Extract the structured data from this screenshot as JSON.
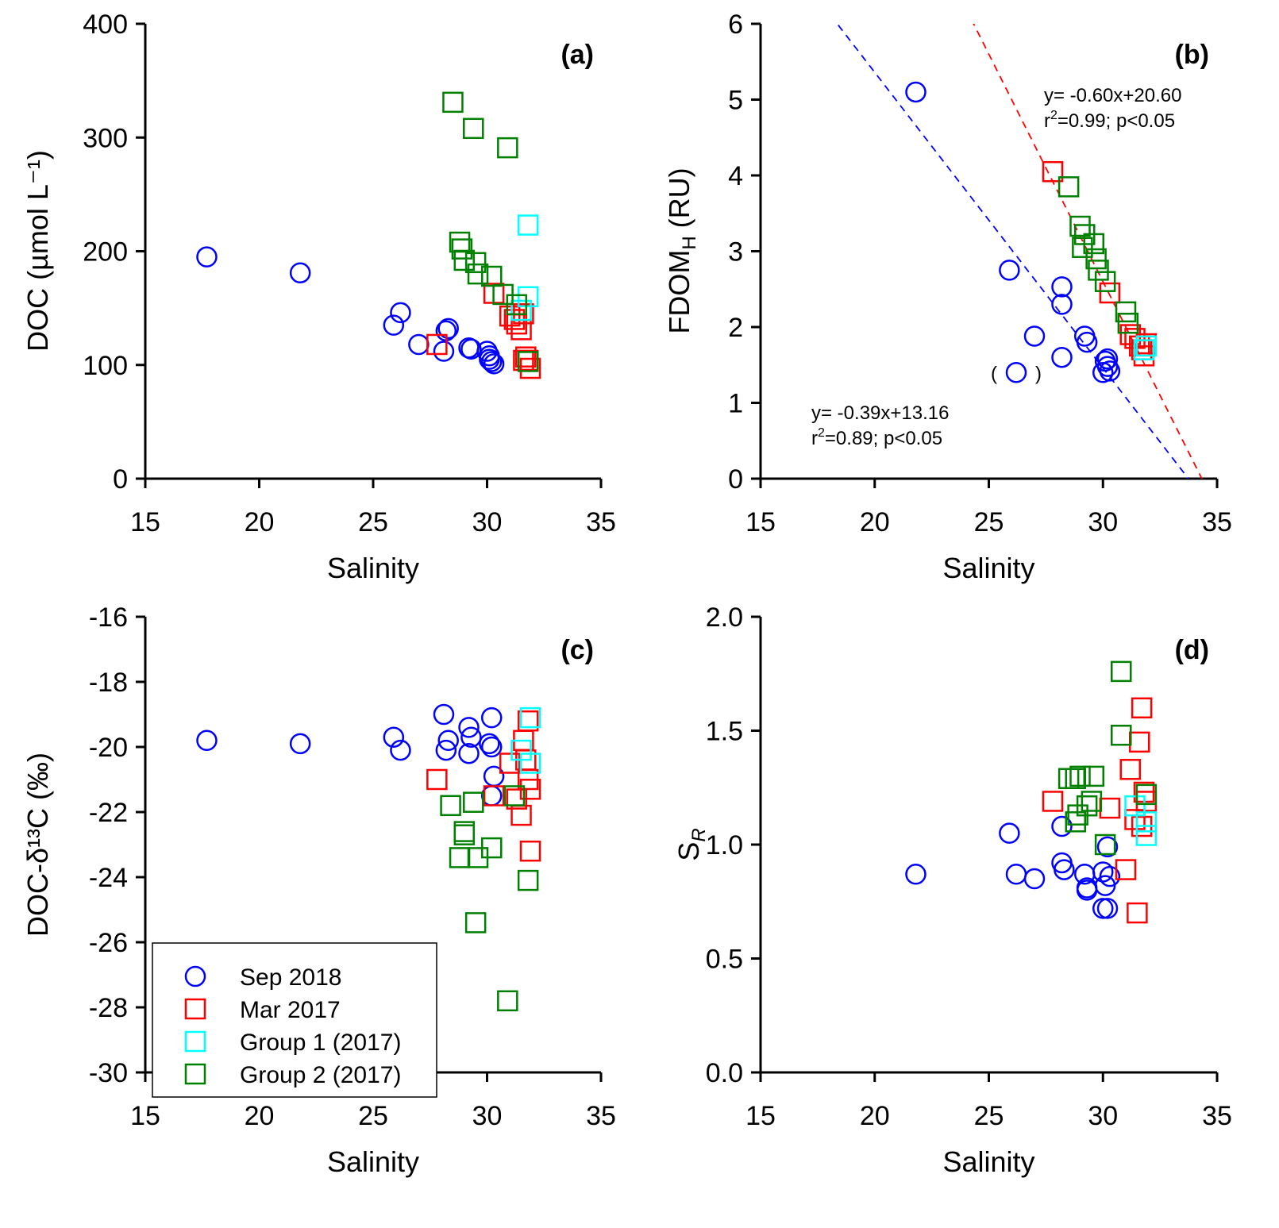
{
  "legend": {
    "entries": [
      {
        "label": "Sep 2018",
        "marker": "circle",
        "color": "#0000ff"
      },
      {
        "label": "Mar 2017",
        "marker": "square",
        "color": "#ff0000"
      },
      {
        "label": "Group 1 (2017)",
        "marker": "square",
        "color": "#00ffff"
      },
      {
        "label": "Group 2 (2017)",
        "marker": "square",
        "color": "#008000"
      }
    ]
  },
  "chart_data": [
    {
      "id": "a",
      "type": "scatter",
      "panel_label": "(a)",
      "xlabel": "Salinity",
      "ylabel": "DOC (µmol L⁻¹)",
      "xlim": [
        15,
        35
      ],
      "ylim": [
        0,
        400
      ],
      "xticks": [
        15,
        20,
        25,
        30,
        35
      ],
      "yticks": [
        0,
        100,
        200,
        300,
        400
      ],
      "xtick_labels": [
        "15",
        "20",
        "25",
        "30",
        "35"
      ],
      "ytick_labels": [
        "0",
        "100",
        "200",
        "300",
        "400"
      ],
      "series": [
        {
          "name": "Sep 2018",
          "points": [
            [
              17.7,
              195
            ],
            [
              21.8,
              181
            ],
            [
              25.9,
              135
            ],
            [
              26.2,
              146
            ],
            [
              27.0,
              118
            ],
            [
              28.1,
              112
            ],
            [
              28.3,
              132
            ],
            [
              28.2,
              130
            ],
            [
              29.2,
              115
            ],
            [
              29.3,
              114
            ],
            [
              30.0,
              112
            ],
            [
              30.1,
              108
            ],
            [
              30.2,
              103
            ],
            [
              30.3,
              101
            ],
            [
              30.1,
              105
            ]
          ]
        },
        {
          "name": "Mar 2017",
          "points": [
            [
              27.8,
              118
            ],
            [
              30.3,
              163
            ],
            [
              31.0,
              143
            ],
            [
              31.2,
              140
            ],
            [
              31.3,
              136
            ],
            [
              31.5,
              131
            ],
            [
              31.6,
              145
            ],
            [
              31.7,
              107
            ],
            [
              31.8,
              104
            ],
            [
              31.9,
              97
            ],
            [
              31.6,
              104
            ]
          ]
        },
        {
          "name": "Group 1 (2017)",
          "points": [
            [
              31.8,
              223
            ],
            [
              31.8,
              160
            ],
            [
              31.5,
              148
            ]
          ]
        },
        {
          "name": "Group 2 (2017)",
          "points": [
            [
              28.5,
              331
            ],
            [
              29.4,
              308
            ],
            [
              30.9,
              291
            ],
            [
              28.8,
              208
            ],
            [
              28.9,
              202
            ],
            [
              29.0,
              192
            ],
            [
              29.5,
              190
            ],
            [
              29.6,
              180
            ],
            [
              30.2,
              178
            ],
            [
              30.7,
              162
            ],
            [
              31.3,
              153
            ],
            [
              31.8,
              103
            ]
          ]
        }
      ]
    },
    {
      "id": "b",
      "type": "scatter",
      "panel_label": "(b)",
      "xlabel": "Salinity",
      "ylabel": "FDOM_H (RU)",
      "xlim": [
        15,
        35
      ],
      "ylim": [
        0,
        6
      ],
      "xticks": [
        15,
        20,
        25,
        30,
        35
      ],
      "yticks": [
        0,
        1,
        2,
        3,
        4,
        5,
        6
      ],
      "xtick_labels": [
        "15",
        "20",
        "25",
        "30",
        "35"
      ],
      "ytick_labels": [
        "0",
        "1",
        "2",
        "3",
        "4",
        "5",
        "6"
      ],
      "annotations": [
        {
          "text_line1": "y= -0.60x+20.60",
          "text_line2_pre": "r",
          "text_line2_sup": "2",
          "text_line2_post": "=0.99; p<0.05",
          "color": "#ff0000"
        },
        {
          "text_line1": "y= -0.39x+13.16",
          "text_line2_pre": "r",
          "text_line2_sup": "2",
          "text_line2_post": "=0.89; p<0.05",
          "color": "#0000ff"
        }
      ],
      "fits": [
        {
          "name": "Mar 2017 + 2017 groups fit",
          "slope": -0.6,
          "intercept": 20.6,
          "color": "#ff0000",
          "style": "dashed"
        },
        {
          "name": "Sep 2018 fit",
          "slope": -0.39,
          "intercept": 13.16,
          "color": "#0000ff",
          "style": "dashed"
        }
      ],
      "outlier_note": "( )",
      "series": [
        {
          "name": "Sep 2018",
          "points": [
            [
              21.8,
              5.1
            ],
            [
              25.9,
              2.75
            ],
            [
              27.0,
              1.88
            ],
            [
              28.2,
              2.53
            ],
            [
              28.2,
              2.3
            ],
            [
              28.2,
              1.6
            ],
            [
              29.2,
              1.88
            ],
            [
              29.3,
              1.8
            ],
            [
              30.0,
              1.4
            ],
            [
              30.1,
              1.55
            ],
            [
              30.2,
              1.48
            ],
            [
              30.3,
              1.42
            ],
            [
              30.2,
              1.58
            ],
            [
              26.2,
              1.4
            ]
          ]
        },
        {
          "name": "Mar 2017",
          "points": [
            [
              27.8,
              4.05
            ],
            [
              30.3,
              2.45
            ],
            [
              31.2,
              1.9
            ],
            [
              31.4,
              1.85
            ],
            [
              31.6,
              1.75
            ],
            [
              31.7,
              1.7
            ],
            [
              31.8,
              1.62
            ],
            [
              31.9,
              1.78
            ]
          ]
        },
        {
          "name": "Group 1 (2017)",
          "points": [
            [
              31.9,
              1.75
            ],
            [
              31.8,
              1.7
            ]
          ]
        },
        {
          "name": "Group 2 (2017)",
          "points": [
            [
              28.5,
              3.85
            ],
            [
              29.0,
              3.33
            ],
            [
              29.2,
              3.22
            ],
            [
              29.1,
              3.05
            ],
            [
              29.6,
              3.1
            ],
            [
              29.7,
              2.9
            ],
            [
              29.8,
              2.75
            ],
            [
              30.1,
              2.6
            ],
            [
              31.0,
              2.2
            ],
            [
              31.1,
              2.05
            ]
          ]
        }
      ]
    },
    {
      "id": "c",
      "type": "scatter",
      "panel_label": "(c)",
      "xlabel": "Salinity",
      "ylabel": "DOC-δ¹³C (‰)",
      "xlim": [
        15,
        35
      ],
      "ylim": [
        -30,
        -16
      ],
      "xticks": [
        15,
        20,
        25,
        30,
        35
      ],
      "yticks": [
        -30,
        -28,
        -26,
        -24,
        -22,
        -20,
        -18,
        -16
      ],
      "xtick_labels": [
        "15",
        "20",
        "25",
        "30",
        "35"
      ],
      "ytick_labels": [
        "-30",
        "-28",
        "-26",
        "-24",
        "-22",
        "-20",
        "-18",
        "-16"
      ],
      "series": [
        {
          "name": "Sep 2018",
          "points": [
            [
              17.7,
              -19.8
            ],
            [
              21.8,
              -19.9
            ],
            [
              25.9,
              -19.7
            ],
            [
              26.2,
              -20.1
            ],
            [
              28.1,
              -19.0
            ],
            [
              28.3,
              -19.8
            ],
            [
              28.2,
              -20.1
            ],
            [
              29.2,
              -19.4
            ],
            [
              29.3,
              -19.7
            ],
            [
              29.2,
              -20.2
            ],
            [
              30.2,
              -19.1
            ],
            [
              30.1,
              -19.9
            ],
            [
              30.2,
              -20.0
            ],
            [
              30.3,
              -20.9
            ],
            [
              30.2,
              -21.5
            ]
          ]
        },
        {
          "name": "Mar 2017",
          "points": [
            [
              27.8,
              -21.0
            ],
            [
              30.3,
              -21.5
            ],
            [
              31.0,
              -20.5
            ],
            [
              31.3,
              -21.6
            ],
            [
              31.5,
              -22.1
            ],
            [
              31.6,
              -19.8
            ],
            [
              31.7,
              -20.4
            ],
            [
              31.8,
              -21.0
            ],
            [
              31.9,
              -21.3
            ],
            [
              31.8,
              -19.2
            ],
            [
              31.9,
              -23.2
            ]
          ]
        },
        {
          "name": "Group 1 (2017)",
          "points": [
            [
              31.9,
              -19.1
            ],
            [
              31.5,
              -20.1
            ],
            [
              31.9,
              -20.5
            ]
          ]
        },
        {
          "name": "Group 2 (2017)",
          "points": [
            [
              28.4,
              -21.8
            ],
            [
              29.4,
              -21.7
            ],
            [
              29.0,
              -22.6
            ],
            [
              29.0,
              -22.7
            ],
            [
              28.8,
              -23.4
            ],
            [
              29.6,
              -23.4
            ],
            [
              30.2,
              -23.1
            ],
            [
              31.2,
              -21.5
            ],
            [
              31.8,
              -24.1
            ],
            [
              29.5,
              -25.4
            ],
            [
              30.9,
              -27.8
            ]
          ]
        }
      ]
    },
    {
      "id": "d",
      "type": "scatter",
      "panel_label": "(d)",
      "xlabel": "Salinity",
      "ylabel": "S_R",
      "xlim": [
        15,
        35
      ],
      "ylim": [
        0.0,
        2.0
      ],
      "xticks": [
        15,
        20,
        25,
        30,
        35
      ],
      "yticks": [
        0.0,
        0.5,
        1.0,
        1.5,
        2.0
      ],
      "xtick_labels": [
        "15",
        "20",
        "25",
        "30",
        "35"
      ],
      "ytick_labels": [
        "0.0",
        "0.5",
        "1.0",
        "1.5",
        "2.0"
      ],
      "series": [
        {
          "name": "Sep 2018",
          "points": [
            [
              21.8,
              0.87
            ],
            [
              25.9,
              1.05
            ],
            [
              26.2,
              0.87
            ],
            [
              27.0,
              0.85
            ],
            [
              28.2,
              1.08
            ],
            [
              28.2,
              0.92
            ],
            [
              28.3,
              0.89
            ],
            [
              29.2,
              0.87
            ],
            [
              29.3,
              0.81
            ],
            [
              29.3,
              0.8
            ],
            [
              30.0,
              0.88
            ],
            [
              30.1,
              0.82
            ],
            [
              30.0,
              0.72
            ],
            [
              30.2,
              0.72
            ],
            [
              30.2,
              0.99
            ],
            [
              30.3,
              0.86
            ]
          ]
        },
        {
          "name": "Mar 2017",
          "points": [
            [
              27.8,
              1.19
            ],
            [
              30.3,
              1.16
            ],
            [
              31.0,
              0.89
            ],
            [
              31.2,
              1.33
            ],
            [
              31.4,
              1.11
            ],
            [
              31.5,
              0.7
            ],
            [
              31.6,
              1.45
            ],
            [
              31.7,
              1.6
            ],
            [
              31.8,
              1.23
            ],
            [
              31.9,
              1.19
            ],
            [
              31.7,
              1.08
            ]
          ]
        },
        {
          "name": "Group 1 (2017)",
          "points": [
            [
              31.4,
              1.17
            ],
            [
              31.9,
              1.1
            ],
            [
              31.9,
              1.04
            ]
          ]
        },
        {
          "name": "Group 2 (2017)",
          "points": [
            [
              30.8,
              1.76
            ],
            [
              30.8,
              1.48
            ],
            [
              28.5,
              1.29
            ],
            [
              28.8,
              1.29
            ],
            [
              29.0,
              1.3
            ],
            [
              29.6,
              1.3
            ],
            [
              29.5,
              1.19
            ],
            [
              29.3,
              1.17
            ],
            [
              28.9,
              1.13
            ],
            [
              28.8,
              1.1
            ],
            [
              30.1,
              1.0
            ],
            [
              31.9,
              1.22
            ]
          ]
        }
      ]
    }
  ]
}
